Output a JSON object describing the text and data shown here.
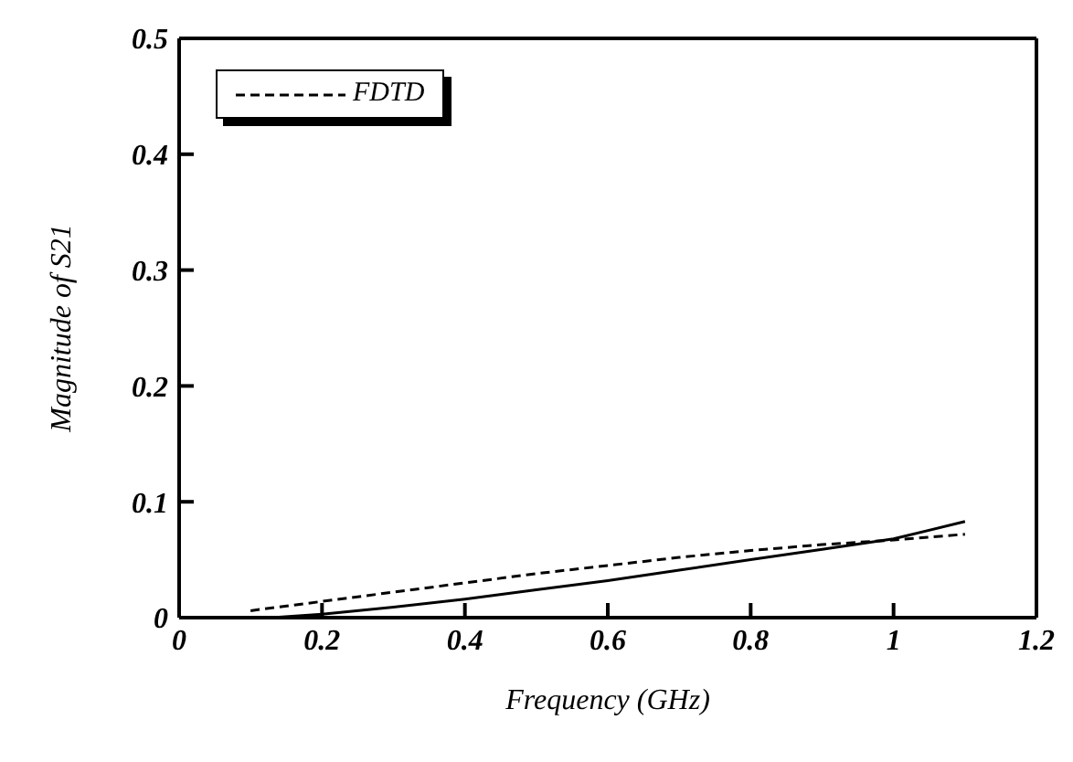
{
  "chart_data": {
    "type": "line",
    "xlabel": "Frequency (GHz)",
    "ylabel": "Magnitude of S21",
    "xlim": [
      0,
      1.2
    ],
    "xticks": [
      0,
      0.2,
      0.4,
      0.6,
      0.8,
      {
        "value": 1,
        "label": "1"
      },
      1.2
    ],
    "ylim": [
      0,
      0.5
    ],
    "yticks": [
      0,
      0.1,
      0.2,
      0.3,
      0.4,
      0.5
    ],
    "grid": false,
    "legend": "top left",
    "marker": "none",
    "series": [
      {
        "color": "#000000",
        "line_style": "solid",
        "x": [
          0.13,
          0.2,
          0.3,
          0.4,
          0.5,
          0.6,
          0.7,
          0.8,
          0.9,
          1.0,
          1.1
        ],
        "values": [
          0,
          0.003,
          0.009,
          0.016,
          0.024,
          0.032,
          0.041,
          0.05,
          0.059,
          0.068,
          0.083
        ]
      },
      {
        "name": "FDTD",
        "color": "#000000",
        "line_style": "dashed",
        "x": [
          0.1,
          0.2,
          0.3,
          0.4,
          0.5,
          0.6,
          0.7,
          0.8,
          0.9,
          1.0,
          1.1
        ],
        "values": [
          0.006,
          0.014,
          0.022,
          0.03,
          0.038,
          0.045,
          0.052,
          0.058,
          0.063,
          0.067,
          0.072
        ]
      }
    ]
  }
}
